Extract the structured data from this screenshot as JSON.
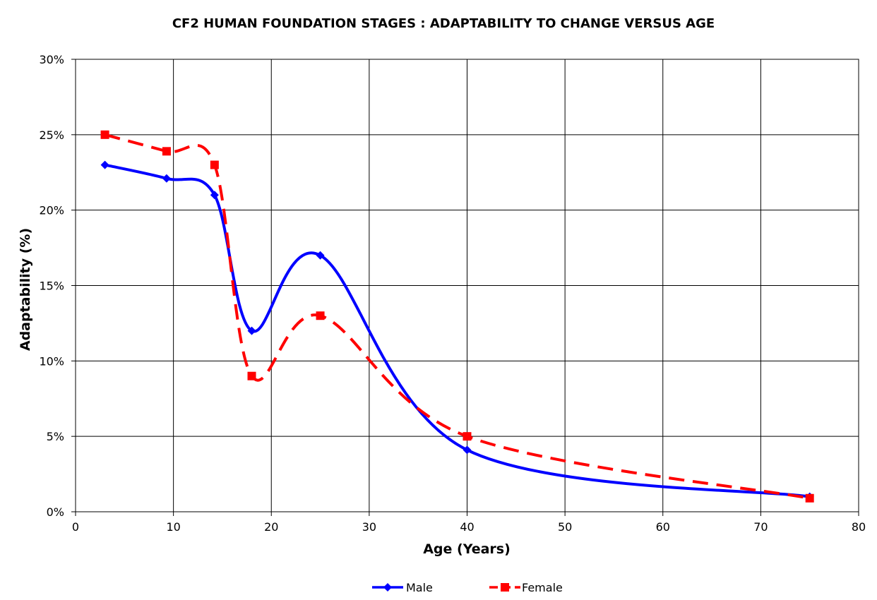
{
  "chart_data": {
    "type": "line",
    "title": "CF2 HUMAN FOUNDATION STAGES : ADAPTABILITY TO CHANGE VERSUS AGE",
    "xlabel": "Age (Years)",
    "ylabel": "Adaptability (%)",
    "xlim": [
      0,
      80
    ],
    "ylim": [
      0,
      30
    ],
    "x_ticks": [
      "0",
      "10",
      "20",
      "30",
      "40",
      "50",
      "60",
      "70",
      "80"
    ],
    "y_ticks": [
      "0%",
      "5%",
      "10%",
      "15%",
      "20%",
      "25%",
      "30%"
    ],
    "grid": true,
    "legend_position": "bottom",
    "smoothed": true,
    "series": [
      {
        "name": "Male",
        "color": "#0000FF",
        "marker": "diamond",
        "line_style": "solid",
        "x": [
          3,
          9.3,
          14.2,
          18,
          25,
          40,
          75
        ],
        "y": [
          23,
          22.1,
          21,
          12,
          17,
          4.1,
          1
        ]
      },
      {
        "name": "Female",
        "color": "#FF0000",
        "marker": "square",
        "line_style": "dashed",
        "x": [
          3,
          9.3,
          14.2,
          18,
          25,
          40,
          75
        ],
        "y": [
          25,
          23.9,
          23,
          9,
          13,
          5,
          0.9
        ]
      }
    ]
  }
}
